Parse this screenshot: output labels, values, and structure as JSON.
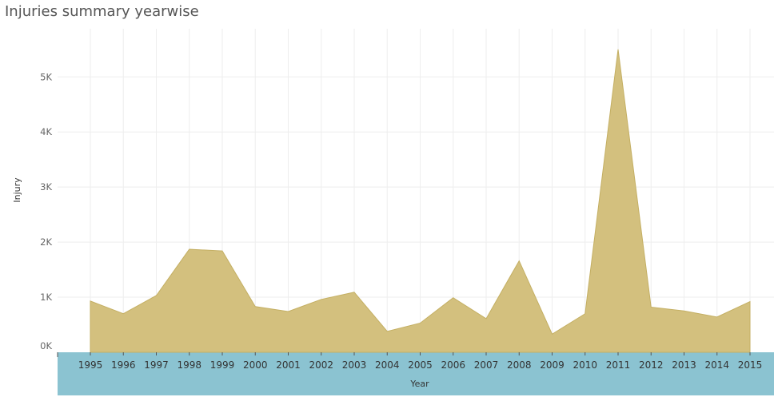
{
  "title": "Injuries summary yearwise",
  "colors": {
    "area_fill": "#D3C07E",
    "area_stroke": "#C4AF63",
    "axis_band": "#8BC3D1",
    "grid": "#EEEEEE",
    "title_text": "#555555"
  },
  "chart_data": {
    "type": "area",
    "title": "Injuries summary yearwise",
    "xlabel": "Year",
    "ylabel": "Injury",
    "x": [
      "1995",
      "1996",
      "1997",
      "1998",
      "1999",
      "2000",
      "2001",
      "2002",
      "2003",
      "2004",
      "2005",
      "2006",
      "2007",
      "2008",
      "2009",
      "2010",
      "2011",
      "2012",
      "2013",
      "2014",
      "2015"
    ],
    "series": [
      {
        "values": [
          930,
          700,
          1030,
          1870,
          1840,
          830,
          740,
          960,
          1090,
          380,
          530,
          990,
          610,
          1660,
          330,
          700,
          5500,
          820,
          750,
          640,
          920
        ]
      }
    ],
    "ylim": [
      0,
      5700
    ],
    "yticks": [
      0,
      1000,
      2000,
      3000,
      4000,
      5000
    ],
    "ytick_labels": [
      "0K",
      "1K",
      "2K",
      "3K",
      "4K",
      "5K"
    ],
    "grid": true
  }
}
